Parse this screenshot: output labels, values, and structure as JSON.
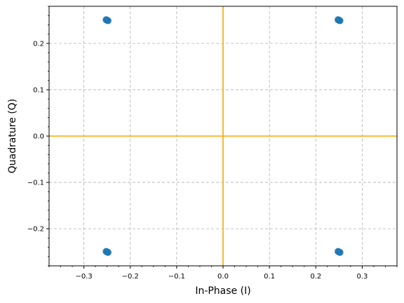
{
  "chart_data": {
    "type": "scatter",
    "title": "",
    "xlabel": "In-Phase (I)",
    "ylabel": "Quadrature (Q)",
    "xlim": [
      -0.375,
      0.375
    ],
    "ylim": [
      -0.28,
      0.28
    ],
    "x_ticks": [
      -0.3,
      -0.2,
      -0.1,
      0.0,
      0.1,
      0.2,
      0.3
    ],
    "x_tick_labels": [
      "−0.3",
      "−0.2",
      "−0.1",
      "0.0",
      "0.1",
      "0.2",
      "0.3"
    ],
    "y_ticks": [
      -0.2,
      -0.1,
      0.0,
      0.1,
      0.2
    ],
    "y_tick_labels": [
      "−0.2",
      "−0.1",
      "0.0",
      "0.1",
      "0.2"
    ],
    "x_minor_step": 0.025,
    "y_minor_step": 0.02,
    "grid": true,
    "reference_lines": {
      "x": 0,
      "y": 0,
      "color": "#ffa500"
    },
    "points": [
      {
        "x": -0.25,
        "y": 0.25
      },
      {
        "x": -0.248,
        "y": 0.249
      },
      {
        "x": -0.252,
        "y": 0.251
      },
      {
        "x": 0.25,
        "y": 0.25
      },
      {
        "x": 0.252,
        "y": 0.249
      },
      {
        "x": 0.248,
        "y": 0.251
      },
      {
        "x": -0.25,
        "y": -0.25
      },
      {
        "x": -0.252,
        "y": -0.249
      },
      {
        "x": -0.248,
        "y": -0.251
      },
      {
        "x": 0.25,
        "y": -0.25
      },
      {
        "x": 0.248,
        "y": -0.249
      },
      {
        "x": 0.252,
        "y": -0.251
      }
    ],
    "point_color": "#1f77b4"
  }
}
